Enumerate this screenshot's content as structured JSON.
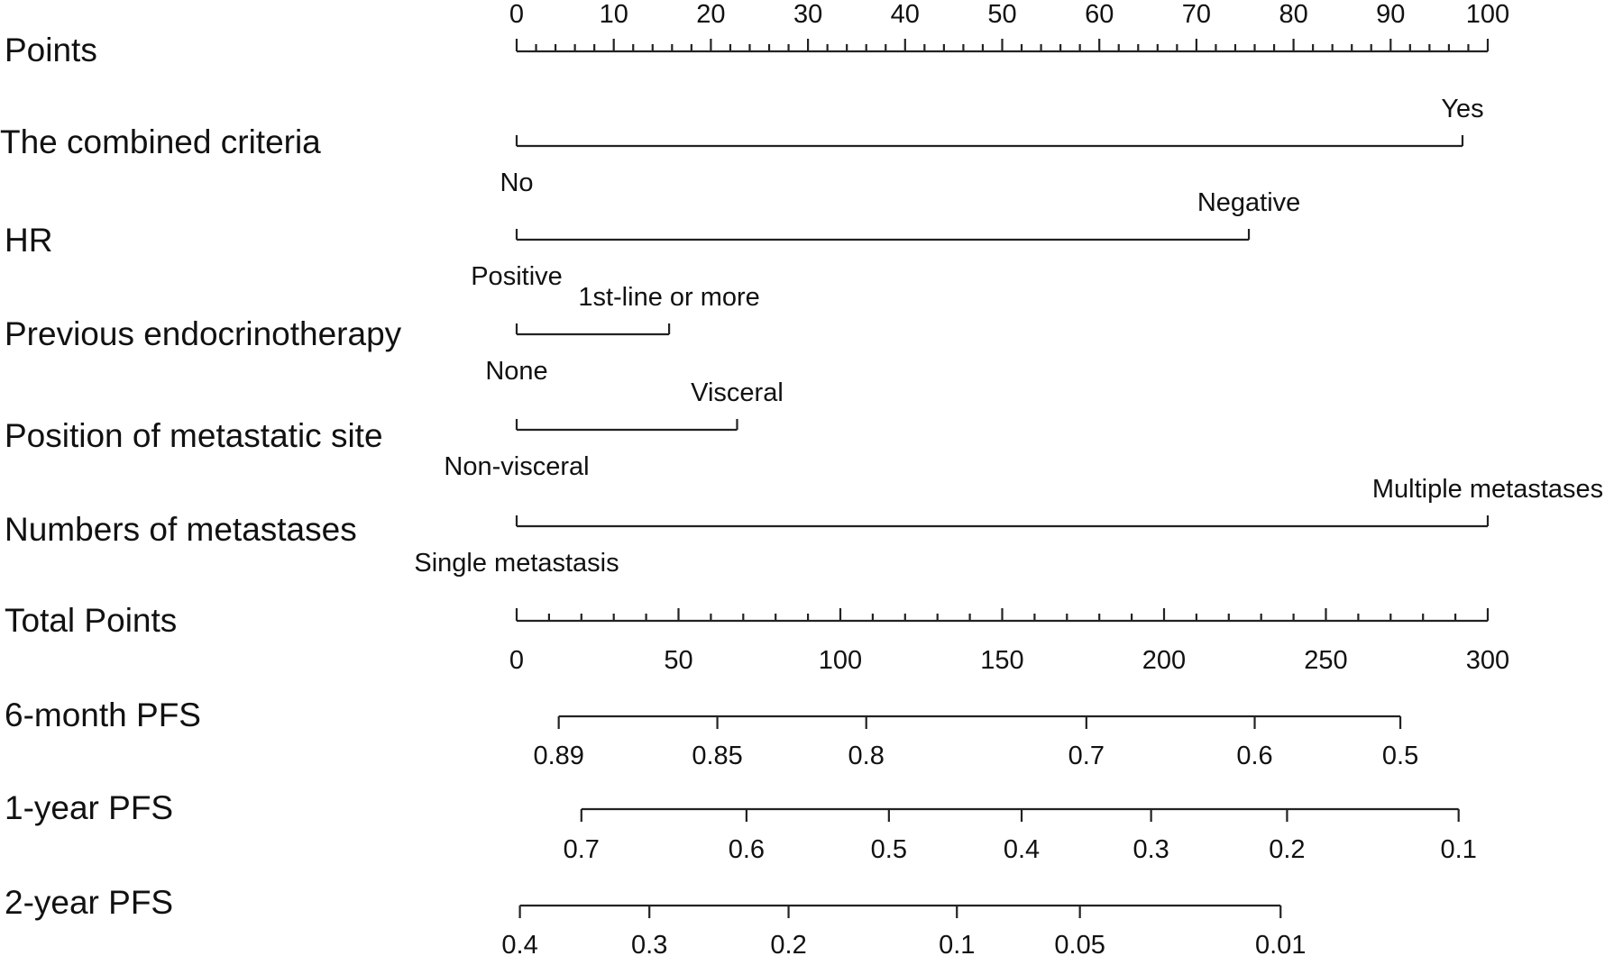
{
  "chart_data": {
    "type": "nomogram",
    "points_scale": {
      "label": "Points",
      "min": 0,
      "max": 100,
      "tick_labels": [
        "0",
        "10",
        "20",
        "30",
        "40",
        "50",
        "60",
        "70",
        "80",
        "90",
        "100"
      ]
    },
    "variables": [
      {
        "label": "The combined criteria",
        "levels": [
          {
            "name": "No",
            "points": 0
          },
          {
            "name": "Yes",
            "points": 97.4
          }
        ]
      },
      {
        "label": "HR",
        "levels": [
          {
            "name": "Positive",
            "points": 0
          },
          {
            "name": "Negative",
            "points": 75.4
          }
        ]
      },
      {
        "label": "Previous endocrinotherapy",
        "levels": [
          {
            "name": "None",
            "points": 0
          },
          {
            "name": "1st-line or more",
            "points": 15.7
          }
        ]
      },
      {
        "label": "Position of metastatic site",
        "levels": [
          {
            "name": "Non-visceral",
            "points": 0
          },
          {
            "name": "Visceral",
            "points": 22.7
          }
        ]
      },
      {
        "label": "Numbers of metastases",
        "levels": [
          {
            "name": "Single metastasis",
            "points": 0
          },
          {
            "name": "Multiple metastases",
            "points": 100
          }
        ]
      }
    ],
    "total_points": {
      "label": "Total Points",
      "min": 0,
      "max": 300,
      "tick_labels": [
        "0",
        "50",
        "100",
        "150",
        "200",
        "250",
        "300"
      ]
    },
    "outcomes": [
      {
        "label": "6-month PFS",
        "ticks": [
          {
            "label": "0.89",
            "total_points": 13
          },
          {
            "label": "0.85",
            "total_points": 62
          },
          {
            "label": "0.8",
            "total_points": 108
          },
          {
            "label": "0.7",
            "total_points": 176
          },
          {
            "label": "0.6",
            "total_points": 228
          },
          {
            "label": "0.5",
            "total_points": 273
          }
        ]
      },
      {
        "label": "1-year PFS",
        "ticks": [
          {
            "label": "0.7",
            "total_points": 20
          },
          {
            "label": "0.6",
            "total_points": 71
          },
          {
            "label": "0.5",
            "total_points": 115
          },
          {
            "label": "0.4",
            "total_points": 156
          },
          {
            "label": "0.3",
            "total_points": 196
          },
          {
            "label": "0.2",
            "total_points": 238
          },
          {
            "label": "0.1",
            "total_points": 291
          }
        ]
      },
      {
        "label": "2-year PFS",
        "ticks": [
          {
            "label": "0.4",
            "total_points": 1
          },
          {
            "label": "0.3",
            "total_points": 41
          },
          {
            "label": "0.2",
            "total_points": 84
          },
          {
            "label": "0.1",
            "total_points": 136
          },
          {
            "label": "0.05",
            "total_points": 174
          },
          {
            "label": "0.01",
            "total_points": 236
          }
        ]
      }
    ]
  }
}
